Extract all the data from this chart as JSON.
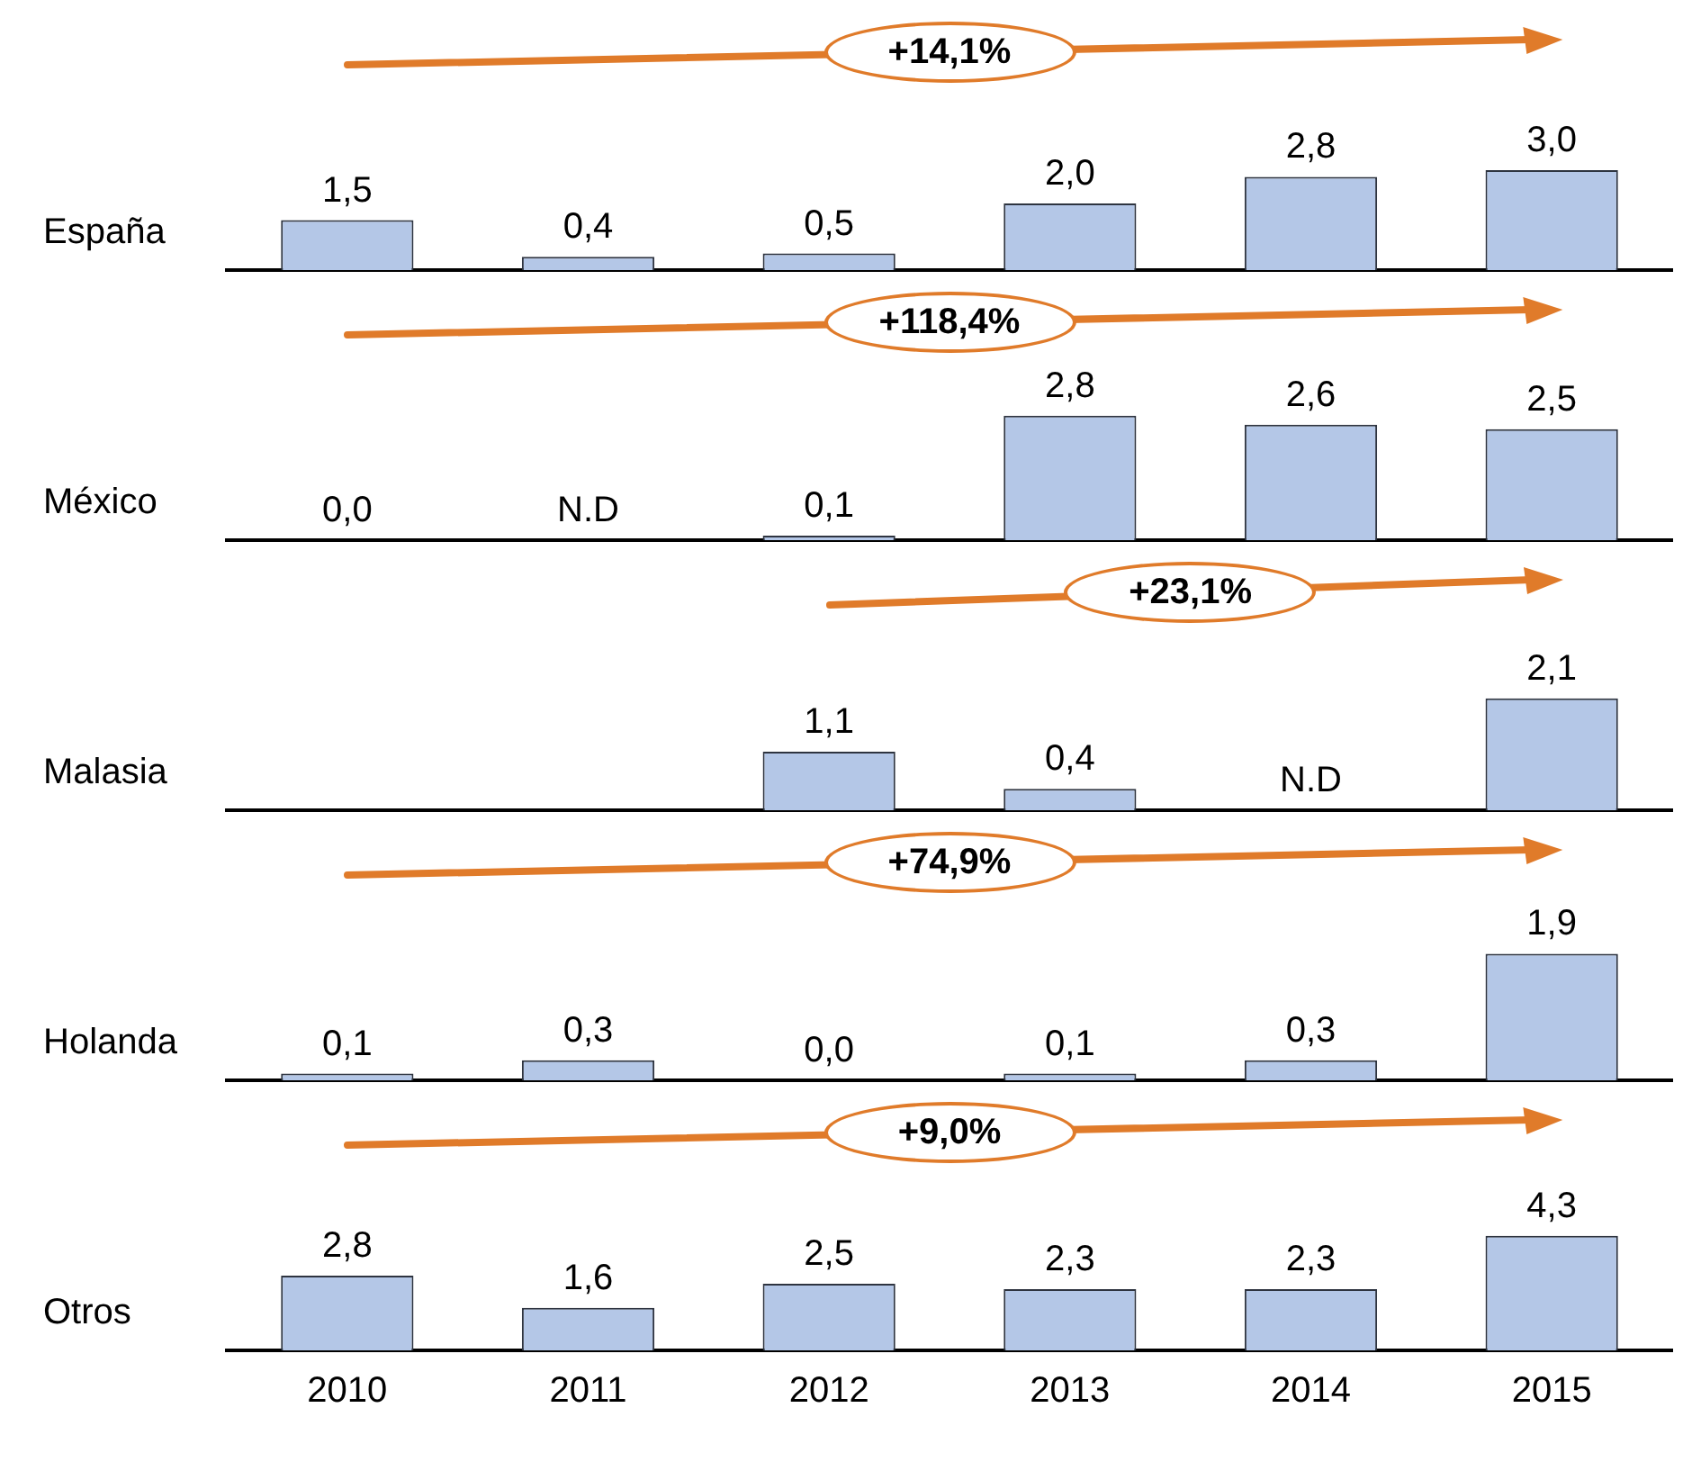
{
  "chart_data": [
    {
      "type": "bar",
      "ylabel": "España",
      "categories": [
        "2010",
        "2011",
        "2012",
        "2013",
        "2014",
        "2015"
      ],
      "values": [
        1.5,
        0.4,
        0.5,
        2.0,
        2.8,
        3.0
      ],
      "value_labels": [
        "1,5",
        "0,4",
        "0,5",
        "2,0",
        "2,8",
        "3,0"
      ],
      "color": "#b4c7e7",
      "annotations": [
        "+14,1%"
      ],
      "tick_labels": false
    },
    {
      "type": "bar",
      "ylabel": "México",
      "categories": [
        "2010",
        "2011",
        "2012",
        "2013",
        "2014",
        "2015"
      ],
      "values": [
        0.0,
        null,
        0.1,
        2.8,
        2.6,
        2.5
      ],
      "value_labels": [
        "0,0",
        "N.D",
        "0,1",
        "2,8",
        "2,6",
        "2,5"
      ],
      "color": "#b4c7e7",
      "annotations": [
        "+118,4%"
      ],
      "tick_labels": false
    },
    {
      "type": "bar",
      "ylabel": "Malasia",
      "categories": [
        "2010",
        "2011",
        "2012",
        "2013",
        "2014",
        "2015"
      ],
      "values": [
        null,
        null,
        1.1,
        0.4,
        null,
        2.1
      ],
      "value_labels": [
        null,
        null,
        "1,1",
        "0,4",
        "N.D",
        "2,1"
      ],
      "color": "#b4c7e7",
      "annotations": [
        "+23,1%"
      ],
      "tick_labels": false
    },
    {
      "type": "bar",
      "ylabel": "Holanda",
      "categories": [
        "2010",
        "2011",
        "2012",
        "2013",
        "2014",
        "2015"
      ],
      "values": [
        0.1,
        0.3,
        0.0,
        0.1,
        0.3,
        1.9
      ],
      "value_labels": [
        "0,1",
        "0,3",
        "0,0",
        "0,1",
        "0,3",
        "1,9"
      ],
      "color": "#b4c7e7",
      "annotations": [
        "+74,9%"
      ],
      "tick_labels": false
    },
    {
      "type": "bar",
      "ylabel": "Otros",
      "categories": [
        "2010",
        "2011",
        "2012",
        "2013",
        "2014",
        "2015"
      ],
      "values": [
        2.8,
        1.6,
        2.5,
        2.3,
        2.3,
        4.3
      ],
      "value_labels": [
        "2,8",
        "1,6",
        "2,5",
        "2,3",
        "2,3",
        "4,3"
      ],
      "color": "#b4c7e7",
      "annotations": [
        "+9,0%"
      ],
      "tick_labels": "x"
    }
  ]
}
